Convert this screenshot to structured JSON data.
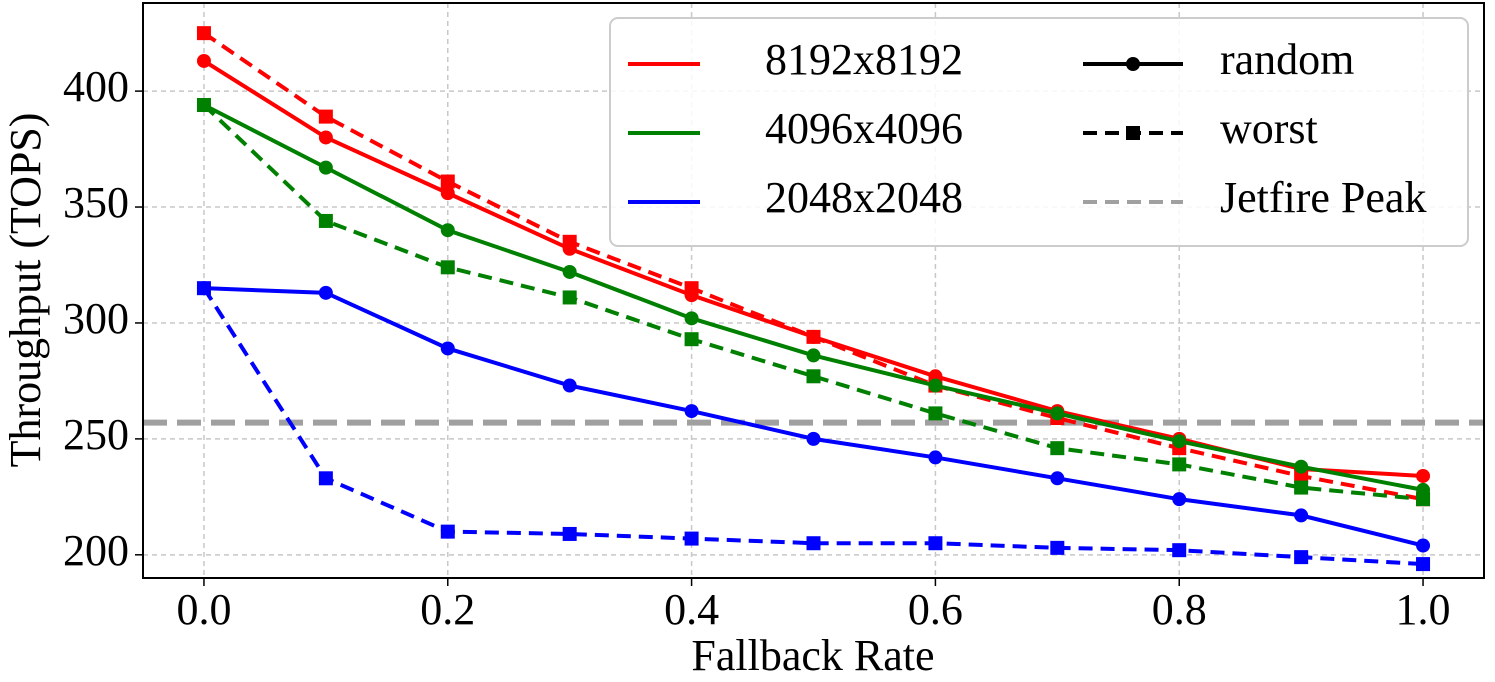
{
  "chart_data": {
    "type": "line",
    "x_label": "Fallback Rate",
    "y_label": "Throughput (TOPS)",
    "x": [
      0,
      0.1,
      0.2,
      0.3,
      0.4,
      0.5,
      0.6,
      0.7,
      0.8,
      0.9,
      1.0
    ],
    "styles": [
      {
        "name": "random",
        "marker": "circle",
        "dashed": false
      },
      {
        "name": "worst",
        "marker": "square",
        "dashed": true
      }
    ],
    "series": [
      {
        "name": "8192x8192",
        "color": "#ff0000",
        "values": [
          [
            413,
            380,
            356,
            332,
            312,
            294,
            277,
            262,
            250,
            237,
            234
          ],
          [
            425,
            389,
            361,
            335,
            315,
            294,
            273,
            259,
            246,
            234,
            224
          ]
        ]
      },
      {
        "name": "4096x4096",
        "color": "#008000",
        "values": [
          [
            394,
            367,
            340,
            322,
            302,
            286,
            273,
            261,
            249,
            238,
            228
          ],
          [
            394,
            344,
            324,
            311,
            293,
            277,
            261,
            246,
            239,
            229,
            224
          ]
        ]
      },
      {
        "name": "2048x2048",
        "color": "#0000ff",
        "values": [
          [
            315,
            313,
            289,
            273,
            262,
            250,
            242,
            233,
            224,
            217,
            204
          ],
          [
            315,
            233,
            210,
            209,
            207,
            205,
            205,
            203,
            202,
            199,
            196
          ]
        ]
      }
    ],
    "hline": {
      "name": "Jetfire Peak",
      "value": 257,
      "color": "#a0a0a0"
    },
    "xlim": [
      -0.05,
      1.05
    ],
    "ylim": [
      190,
      438
    ],
    "xticks": [
      {
        "value": 0,
        "label": "0.0"
      },
      {
        "value": 0.2,
        "label": "0.2"
      },
      {
        "value": 0.4,
        "label": "0.4"
      },
      {
        "value": 0.6,
        "label": "0.6"
      },
      {
        "value": 0.8,
        "label": "0.8"
      },
      {
        "value": 1.0,
        "label": "1.0"
      }
    ],
    "yticks": [
      200,
      250,
      300,
      350,
      400
    ],
    "grid": true
  }
}
